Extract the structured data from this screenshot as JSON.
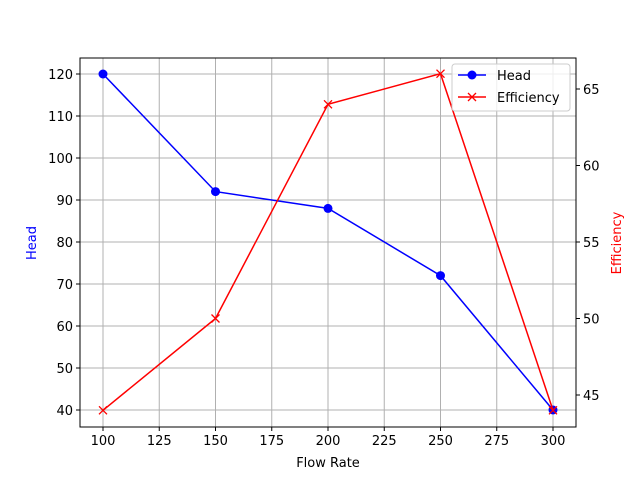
{
  "chart_data": {
    "type": "line",
    "title": "",
    "xlabel": "Flow Rate",
    "ylabel": "Head",
    "y2label": "Efficiency",
    "x": [
      100,
      150,
      200,
      250,
      300
    ],
    "xlim": [
      90,
      310
    ],
    "ylim": [
      36,
      124
    ],
    "y2lim": [
      43,
      67
    ],
    "xticks": [
      100,
      125,
      150,
      175,
      200,
      225,
      250,
      275,
      300
    ],
    "yticks": [
      40,
      50,
      60,
      70,
      80,
      90,
      100,
      110,
      120
    ],
    "y2ticks": [
      45,
      50,
      55,
      60,
      65
    ],
    "grid": true,
    "legend_position": "upper right",
    "series": [
      {
        "name": "Head",
        "axis": "left",
        "color": "#0000ff",
        "marker": "o",
        "values": [
          120,
          92,
          88,
          72,
          40
        ]
      },
      {
        "name": "Efficiency",
        "axis": "right",
        "color": "#ff0000",
        "marker": "x",
        "values": [
          44,
          50,
          64,
          66,
          44
        ]
      }
    ]
  },
  "legend": {
    "head": "Head",
    "efficiency": "Efficiency"
  },
  "axes": {
    "xlabel": "Flow Rate",
    "ylabel": "Head",
    "y2label": "Efficiency"
  }
}
